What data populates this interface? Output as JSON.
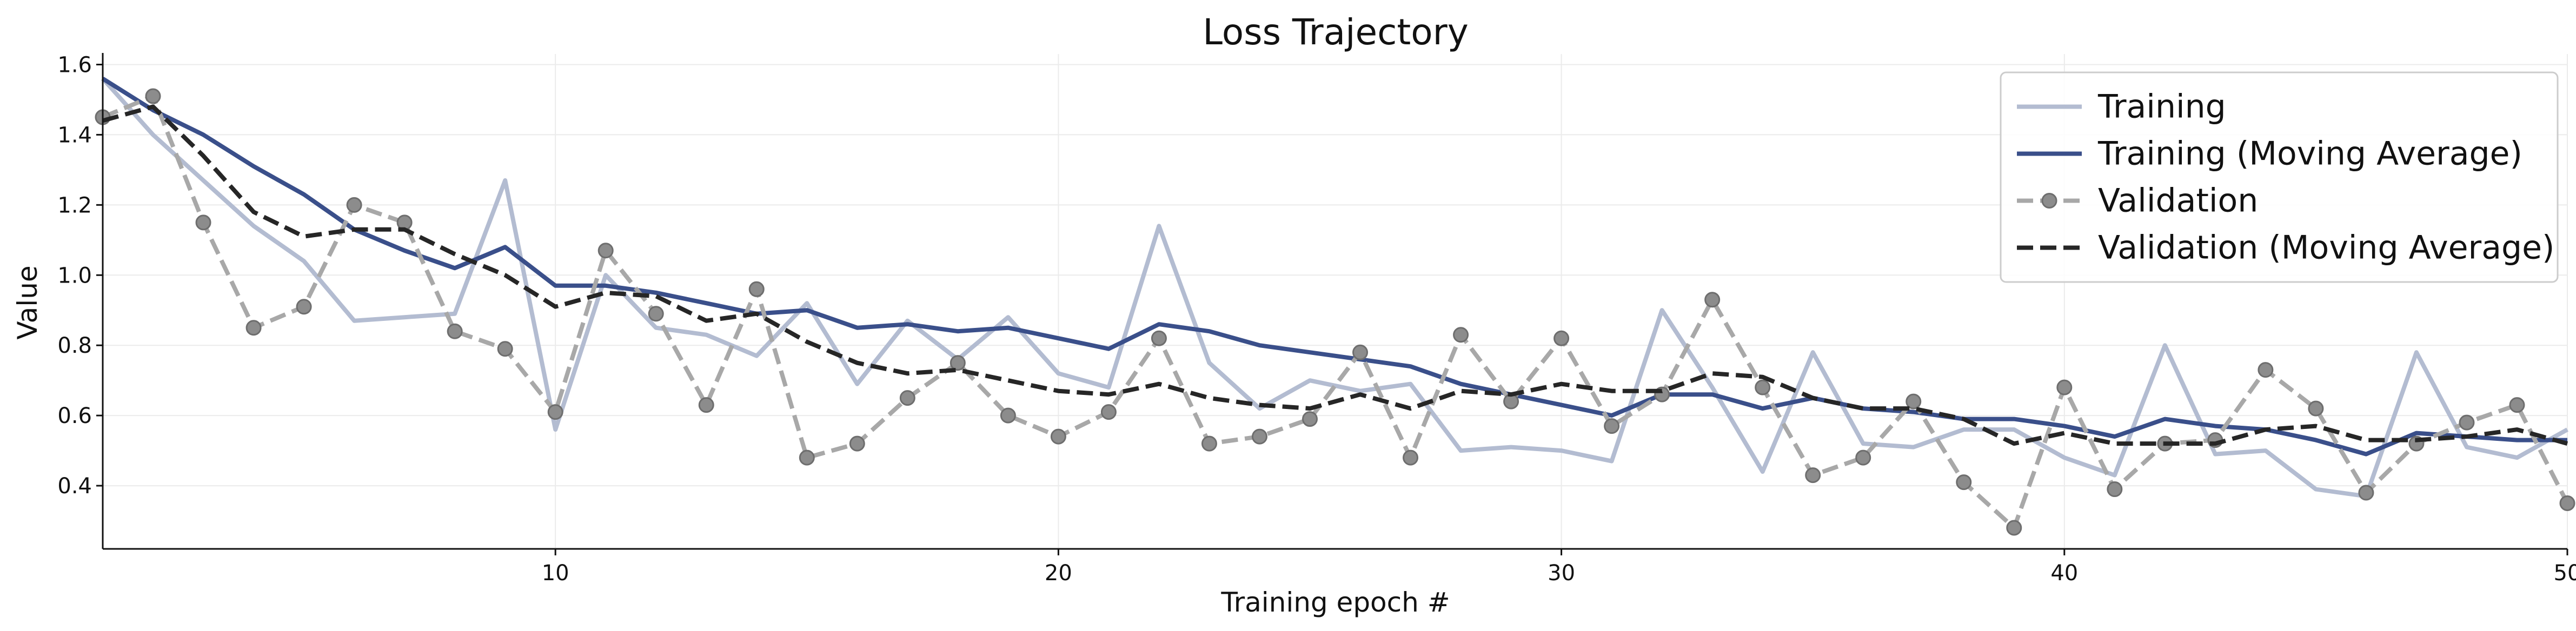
{
  "chart_data": {
    "type": "line",
    "title": "Loss Trajectory",
    "xlabel": "Training epoch #",
    "ylabel": "Value",
    "xlim": [
      1,
      50
    ],
    "ylim": [
      0.22,
      1.63
    ],
    "xticks": [
      10,
      20,
      30,
      40,
      50
    ],
    "yticks": [
      0.4,
      0.6,
      0.8,
      1.0,
      1.2,
      1.4,
      1.6
    ],
    "grid": true,
    "legend_position": "top-right",
    "x": [
      1,
      2,
      3,
      4,
      5,
      6,
      7,
      8,
      9,
      10,
      11,
      12,
      13,
      14,
      15,
      16,
      17,
      18,
      19,
      20,
      21,
      22,
      23,
      24,
      25,
      26,
      27,
      28,
      29,
      30,
      31,
      32,
      33,
      34,
      35,
      36,
      37,
      38,
      39,
      40,
      41,
      42,
      43,
      44,
      45,
      46,
      47,
      48,
      49,
      50
    ],
    "series": [
      {
        "name": "Training",
        "color": "#b3bcd1",
        "style": "solid",
        "markers": false,
        "values": [
          1.56,
          1.4,
          1.27,
          1.14,
          1.04,
          0.87,
          0.88,
          0.89,
          1.27,
          0.56,
          1.0,
          0.85,
          0.83,
          0.77,
          0.92,
          0.69,
          0.87,
          0.76,
          0.88,
          0.72,
          0.68,
          1.14,
          0.75,
          0.62,
          0.7,
          0.67,
          0.69,
          0.5,
          0.51,
          0.5,
          0.47,
          0.9,
          0.68,
          0.44,
          0.78,
          0.52,
          0.51,
          0.56,
          0.56,
          0.48,
          0.43,
          0.8,
          0.49,
          0.5,
          0.39,
          0.37,
          0.78,
          0.51,
          0.48,
          0.56
        ]
      },
      {
        "name": "Training (Moving Average)",
        "color": "#3a4f8a",
        "style": "solid",
        "markers": false,
        "values": [
          1.56,
          1.47,
          1.4,
          1.31,
          1.23,
          1.13,
          1.07,
          1.02,
          1.08,
          0.97,
          0.97,
          0.95,
          0.92,
          0.89,
          0.9,
          0.85,
          0.86,
          0.84,
          0.85,
          0.82,
          0.79,
          0.86,
          0.84,
          0.8,
          0.78,
          0.76,
          0.74,
          0.69,
          0.66,
          0.63,
          0.6,
          0.66,
          0.66,
          0.62,
          0.65,
          0.62,
          0.61,
          0.59,
          0.59,
          0.57,
          0.54,
          0.59,
          0.57,
          0.56,
          0.53,
          0.49,
          0.55,
          0.54,
          0.53,
          0.53
        ]
      },
      {
        "name": "Validation",
        "color": "#a8a8a8",
        "style": "dashed",
        "markers": true,
        "values": [
          1.45,
          1.51,
          1.15,
          0.85,
          0.91,
          1.2,
          1.15,
          0.84,
          0.79,
          0.61,
          1.07,
          0.89,
          0.63,
          0.96,
          0.48,
          0.52,
          0.65,
          0.75,
          0.6,
          0.54,
          0.61,
          0.82,
          0.52,
          0.54,
          0.59,
          0.78,
          0.48,
          0.83,
          0.64,
          0.82,
          0.57,
          0.66,
          0.93,
          0.68,
          0.43,
          0.48,
          0.64,
          0.41,
          0.28,
          0.68,
          0.39,
          0.52,
          0.53,
          0.73,
          0.62,
          0.38,
          0.52,
          0.58,
          0.63,
          0.35
        ]
      },
      {
        "name": "Validation (Moving Average)",
        "color": "#262626",
        "style": "dashed",
        "markers": false,
        "values": [
          1.44,
          1.48,
          1.34,
          1.18,
          1.11,
          1.13,
          1.13,
          1.06,
          1.0,
          0.91,
          0.95,
          0.94,
          0.87,
          0.89,
          0.81,
          0.75,
          0.72,
          0.73,
          0.7,
          0.67,
          0.66,
          0.69,
          0.65,
          0.63,
          0.62,
          0.66,
          0.62,
          0.67,
          0.66,
          0.69,
          0.67,
          0.67,
          0.72,
          0.71,
          0.65,
          0.62,
          0.62,
          0.59,
          0.52,
          0.55,
          0.52,
          0.52,
          0.52,
          0.56,
          0.57,
          0.53,
          0.53,
          0.54,
          0.56,
          0.52
        ]
      }
    ]
  }
}
